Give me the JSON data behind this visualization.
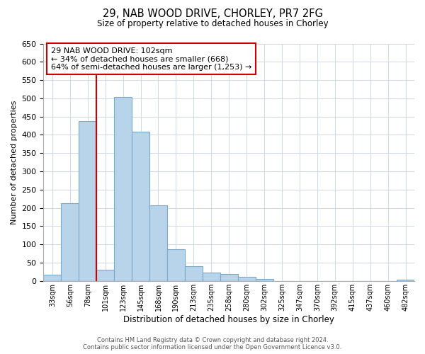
{
  "title": "29, NAB WOOD DRIVE, CHORLEY, PR7 2FG",
  "subtitle": "Size of property relative to detached houses in Chorley",
  "xlabel": "Distribution of detached houses by size in Chorley",
  "ylabel": "Number of detached properties",
  "bar_labels": [
    "33sqm",
    "56sqm",
    "78sqm",
    "101sqm",
    "123sqm",
    "145sqm",
    "168sqm",
    "190sqm",
    "213sqm",
    "235sqm",
    "258sqm",
    "280sqm",
    "302sqm",
    "325sqm",
    "347sqm",
    "370sqm",
    "392sqm",
    "415sqm",
    "437sqm",
    "460sqm",
    "482sqm"
  ],
  "bar_values": [
    18,
    213,
    437,
    30,
    503,
    408,
    207,
    87,
    40,
    22,
    19,
    12,
    5,
    0,
    0,
    0,
    0,
    0,
    0,
    0,
    4
  ],
  "bar_color": "#b8d4ea",
  "bar_edge_color": "#7aaac8",
  "vline_color": "#cc0000",
  "annotation_title": "29 NAB WOOD DRIVE: 102sqm",
  "annotation_line1": "← 34% of detached houses are smaller (668)",
  "annotation_line2": "64% of semi-detached houses are larger (1,253) →",
  "annotation_box_color": "#ffffff",
  "annotation_box_edge": "#cc0000",
  "ylim": [
    0,
    650
  ],
  "yticks": [
    0,
    50,
    100,
    150,
    200,
    250,
    300,
    350,
    400,
    450,
    500,
    550,
    600,
    650
  ],
  "footer_line1": "Contains HM Land Registry data © Crown copyright and database right 2024.",
  "footer_line2": "Contains public sector information licensed under the Open Government Licence v3.0.",
  "bg_color": "#ffffff",
  "grid_color": "#ccd8e8"
}
